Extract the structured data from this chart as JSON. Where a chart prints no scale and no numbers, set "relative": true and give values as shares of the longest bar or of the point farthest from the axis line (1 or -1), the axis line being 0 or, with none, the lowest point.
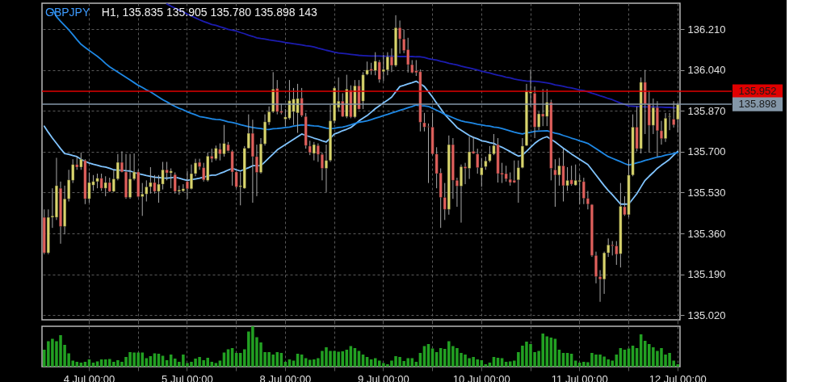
{
  "chart_data": [
    {
      "type": "candlestick",
      "title": "GBPJPY",
      "subtitle": "H1, 135.835 135.905 135.780 135.898 143",
      "categories": [
        null,
        null,
        null,
        null,
        null,
        null,
        null,
        null,
        null,
        null,
        null,
        "4 Jul 00:00",
        null,
        null,
        null,
        null,
        null,
        null,
        null,
        null,
        null,
        null,
        null,
        null,
        null,
        null,
        null,
        null,
        null,
        null,
        null,
        null,
        null,
        null,
        null,
        "5 Jul 00:00",
        null,
        null,
        null,
        null,
        null,
        null,
        null,
        null,
        null,
        null,
        null,
        null,
        null,
        null,
        null,
        null,
        null,
        null,
        null,
        null,
        null,
        null,
        null,
        "8 Jul 00:00",
        null,
        null,
        null,
        null,
        null,
        null,
        null,
        null,
        null,
        null,
        null,
        null,
        null,
        null,
        null,
        null,
        null,
        null,
        null,
        null,
        null,
        null,
        null,
        "9 Jul 00:00",
        null,
        null,
        null,
        null,
        null,
        null,
        null,
        null,
        null,
        null,
        null,
        null,
        null,
        null,
        null,
        null,
        null,
        null,
        null,
        null,
        null,
        null,
        null,
        "10 Jul 00:00",
        null,
        null,
        null,
        null,
        null,
        null,
        null,
        null,
        null,
        null,
        null,
        null,
        null,
        null,
        null,
        null,
        null,
        null,
        null,
        null,
        null,
        null,
        null,
        "11 Jul 00:00",
        null,
        null,
        null,
        null,
        null,
        null,
        null,
        null,
        null,
        null,
        null,
        null,
        null,
        null,
        null,
        null,
        null,
        null,
        null,
        null,
        null,
        null,
        null,
        "12 Jul 00:00"
      ],
      "ohlc": [
        [
          135.427,
          135.46,
          135.273,
          135.279
        ],
        [
          135.279,
          135.46,
          135.273,
          135.427
        ],
        [
          135.427,
          135.548,
          135.383,
          135.433
        ],
        [
          135.427,
          135.675,
          135.416,
          135.559
        ],
        [
          135.548,
          135.576,
          135.317,
          135.389
        ],
        [
          135.389,
          135.559,
          135.356,
          135.504
        ],
        [
          135.504,
          135.625,
          135.493,
          135.583
        ],
        [
          135.581,
          135.669,
          135.57,
          135.647
        ],
        [
          135.647,
          135.68,
          135.625,
          135.636
        ],
        [
          135.636,
          135.697,
          135.625,
          135.669
        ],
        [
          135.664,
          135.669,
          135.482,
          135.504
        ],
        [
          135.504,
          135.614,
          135.488,
          135.572
        ],
        [
          135.561,
          135.603,
          135.537,
          135.576
        ],
        [
          135.576,
          135.609,
          135.548,
          135.59
        ],
        [
          135.59,
          135.609,
          135.537,
          135.548
        ],
        [
          135.548,
          135.598,
          135.515,
          135.572
        ],
        [
          135.572,
          135.592,
          135.532,
          135.535
        ],
        [
          135.535,
          135.625,
          135.532,
          135.587
        ],
        [
          135.587,
          135.691,
          135.581,
          135.656
        ],
        [
          135.656,
          135.702,
          135.614,
          135.616
        ],
        [
          135.616,
          135.691,
          135.504,
          135.51
        ],
        [
          135.51,
          135.691,
          135.504,
          135.587
        ],
        [
          135.587,
          135.693,
          135.581,
          135.616
        ],
        [
          135.616,
          135.625,
          135.51,
          135.513
        ],
        [
          135.513,
          135.57,
          135.433,
          135.524
        ],
        [
          135.524,
          135.581,
          135.493,
          135.554
        ],
        [
          135.554,
          135.636,
          135.526,
          135.572
        ],
        [
          135.572,
          135.603,
          135.526,
          135.535
        ],
        [
          135.535,
          135.603,
          135.488,
          135.565
        ],
        [
          135.565,
          135.658,
          135.543,
          135.625
        ],
        [
          135.625,
          135.658,
          135.581,
          135.612
        ],
        [
          135.612,
          135.631,
          135.548,
          135.62
        ],
        [
          135.605,
          135.614,
          135.526,
          135.535
        ],
        [
          135.535,
          135.559,
          135.521,
          135.541
        ],
        [
          135.537,
          135.565,
          135.532,
          135.546
        ],
        [
          135.576,
          135.62,
          135.504,
          135.546
        ],
        [
          135.546,
          135.647,
          135.543,
          135.609
        ],
        [
          135.609,
          135.671,
          135.598,
          135.654
        ],
        [
          135.656,
          135.671,
          135.625,
          135.638
        ],
        [
          135.634,
          135.654,
          135.576,
          135.583
        ],
        [
          135.581,
          135.697,
          135.576,
          135.682
        ],
        [
          135.682,
          135.713,
          135.656,
          135.671
        ],
        [
          135.671,
          135.726,
          135.664,
          135.715
        ],
        [
          135.711,
          135.735,
          135.664,
          135.691
        ],
        [
          135.691,
          135.812,
          135.68,
          135.735
        ],
        [
          135.73,
          135.741,
          135.702,
          135.704
        ],
        [
          135.702,
          135.708,
          135.559,
          135.616
        ],
        [
          135.616,
          135.62,
          135.548,
          135.554
        ],
        [
          135.554,
          135.614,
          135.477,
          135.559
        ],
        [
          135.548,
          135.724,
          135.546,
          135.715
        ],
        [
          135.715,
          135.856,
          135.713,
          135.777
        ],
        [
          135.777,
          135.834,
          135.488,
          135.68
        ],
        [
          135.68,
          135.73,
          135.515,
          135.614
        ],
        [
          135.614,
          135.757,
          135.609,
          135.733
        ],
        [
          135.733,
          135.856,
          135.726,
          135.825
        ],
        [
          135.823,
          135.889,
          135.812,
          135.867
        ],
        [
          135.867,
          136.032,
          135.862,
          135.961
        ],
        [
          135.964,
          135.999,
          135.856,
          135.867
        ],
        [
          135.869,
          135.9,
          135.856,
          135.863
        ],
        [
          135.836,
          135.878,
          135.807,
          135.845
        ],
        [
          135.84,
          135.999,
          135.834,
          135.913
        ],
        [
          135.867,
          135.966,
          135.812,
          135.92
        ],
        [
          135.862,
          135.983,
          135.779,
          135.922
        ],
        [
          135.924,
          135.966,
          135.845,
          135.851
        ],
        [
          135.847,
          135.862,
          135.713,
          135.726
        ],
        [
          135.724,
          135.746,
          135.686,
          135.697
        ],
        [
          135.693,
          135.741,
          135.664,
          135.73
        ],
        [
          135.726,
          135.735,
          135.658,
          135.689
        ],
        [
          135.689,
          135.697,
          135.581,
          135.631
        ],
        [
          135.631,
          135.73,
          135.532,
          135.664
        ],
        [
          135.664,
          135.895,
          135.658,
          135.829
        ],
        [
          135.829,
          135.972,
          135.818,
          135.966
        ],
        [
          135.884,
          136.01,
          135.867,
          135.911
        ],
        [
          135.911,
          135.944,
          135.845,
          135.847
        ],
        [
          135.847,
          136.021,
          135.84,
          135.961
        ],
        [
          135.957,
          135.977,
          135.84,
          135.845
        ],
        [
          135.845,
          135.999,
          135.84,
          135.975
        ],
        [
          135.975,
          135.999,
          135.876,
          135.878
        ],
        [
          135.911,
          136.032,
          135.878,
          136.021
        ],
        [
          136.023,
          136.076,
          136.019,
          136.041
        ],
        [
          136.045,
          136.071,
          136.021,
          136.038
        ],
        [
          136.038,
          136.115,
          136.019,
          136.078
        ],
        [
          136.074,
          136.082,
          135.988,
          136.001
        ],
        [
          136.034,
          136.104,
          135.994,
          136.043
        ],
        [
          136.041,
          136.115,
          136.019,
          136.096
        ],
        [
          136.096,
          136.131,
          136.032,
          136.06
        ],
        [
          136.06,
          136.269,
          136.054,
          136.217
        ],
        [
          136.217,
          136.247,
          136.109,
          136.17
        ],
        [
          136.17,
          136.208,
          136.111,
          136.122
        ],
        [
          136.126,
          136.175,
          136.03,
          136.063
        ],
        [
          136.063,
          136.082,
          136.027,
          136.03
        ],
        [
          136.038,
          136.082,
          136.016,
          136.03
        ],
        [
          136.034,
          136.043,
          135.785,
          135.823
        ],
        [
          135.821,
          135.862,
          135.785,
          135.803
        ],
        [
          135.805,
          135.818,
          135.57,
          135.803
        ],
        [
          135.803,
          135.862,
          135.686,
          135.691
        ],
        [
          135.691,
          135.719,
          135.548,
          135.609
        ],
        [
          135.612,
          135.631,
          135.383,
          135.51
        ],
        [
          135.51,
          135.57,
          135.416,
          135.46
        ],
        [
          135.46,
          135.768,
          135.438,
          135.73
        ],
        [
          135.73,
          135.757,
          135.504,
          135.581
        ],
        [
          135.581,
          135.592,
          135.471,
          135.557
        ],
        [
          135.557,
          135.647,
          135.405,
          135.638
        ],
        [
          135.638,
          135.654,
          135.565,
          135.631
        ],
        [
          135.631,
          135.763,
          135.587,
          135.7
        ],
        [
          135.702,
          135.763,
          135.691,
          135.693
        ],
        [
          135.691,
          135.713,
          135.609,
          135.634
        ],
        [
          135.603,
          135.675,
          135.554,
          135.634
        ],
        [
          135.638,
          135.68,
          135.625,
          135.662
        ],
        [
          135.662,
          135.724,
          135.656,
          135.691
        ],
        [
          135.691,
          135.774,
          135.686,
          135.726
        ],
        [
          135.73,
          135.757,
          135.572,
          135.609
        ],
        [
          135.612,
          135.654,
          135.57,
          135.605
        ],
        [
          135.609,
          135.642,
          135.576,
          135.587
        ],
        [
          135.585,
          135.614,
          135.559,
          135.572
        ],
        [
          135.581,
          135.664,
          135.57,
          135.572
        ],
        [
          135.583,
          135.664,
          135.488,
          135.634
        ],
        [
          135.634,
          135.757,
          135.631,
          135.724
        ],
        [
          135.726,
          135.983,
          135.724,
          135.953
        ],
        [
          135.944,
          136.043,
          135.889,
          135.95
        ],
        [
          135.944,
          135.972,
          135.757,
          135.803
        ],
        [
          135.803,
          135.867,
          135.79,
          135.858
        ],
        [
          135.858,
          135.961,
          135.807,
          135.847
        ],
        [
          135.847,
          135.961,
          135.807,
          135.906
        ],
        [
          135.906,
          135.917,
          135.581,
          135.631
        ],
        [
          135.625,
          135.669,
          135.471,
          135.603
        ],
        [
          135.603,
          135.675,
          135.559,
          135.642
        ],
        [
          135.642,
          135.713,
          135.493,
          135.559
        ],
        [
          135.559,
          135.636,
          135.537,
          135.581
        ],
        [
          135.583,
          135.642,
          135.559,
          135.565
        ],
        [
          135.561,
          135.647,
          135.559,
          135.581
        ],
        [
          135.576,
          135.603,
          135.482,
          135.581
        ],
        [
          135.576,
          135.592,
          135.482,
          135.506
        ],
        [
          135.506,
          135.537,
          135.46,
          135.482
        ],
        [
          135.48,
          135.482,
          135.262,
          135.268
        ],
        [
          135.268,
          135.284,
          135.152,
          135.18
        ],
        [
          135.18,
          135.207,
          135.075,
          135.169
        ],
        [
          135.169,
          135.284,
          135.108,
          135.279
        ],
        [
          135.279,
          135.339,
          135.262,
          135.312
        ],
        [
          135.312,
          135.328,
          135.268,
          135.308
        ],
        [
          135.308,
          135.328,
          135.229,
          135.273
        ],
        [
          135.275,
          135.57,
          135.218,
          135.473
        ],
        [
          135.471,
          135.515,
          135.433,
          135.438
        ],
        [
          135.438,
          135.669,
          135.427,
          135.603
        ],
        [
          135.603,
          135.856,
          135.598,
          135.803
        ],
        [
          135.803,
          135.889,
          135.702,
          135.713
        ],
        [
          135.713,
          136.01,
          135.693,
          135.99
        ],
        [
          135.99,
          136.041,
          135.774,
          135.9
        ],
        [
          135.9,
          135.955,
          135.697,
          135.81
        ],
        [
          135.81,
          135.922,
          135.774,
          135.884
        ],
        [
          135.884,
          135.911,
          135.68,
          135.788
        ],
        [
          135.788,
          135.829,
          135.73,
          135.755
        ],
        [
          135.755,
          135.862,
          135.741,
          135.84
        ],
        [
          135.845,
          135.862,
          135.79,
          135.847
        ],
        [
          135.836,
          135.911,
          135.801,
          135.812
        ],
        [
          135.835,
          135.905,
          135.78,
          135.898
        ]
      ],
      "colors": [
        "#e0605c",
        "#d8d46c",
        "#d8d46c",
        "#d8d46c",
        "#e0605c",
        "#d8d46c",
        "#d8d46c",
        "#d8d46c",
        "#e0605c",
        "#d8d46c",
        "#e0605c",
        "#d8d46c",
        "#d8d46c",
        "#d8d46c",
        "#e0605c",
        "#d8d46c",
        "#e0605c",
        "#d8d46c",
        "#d8d46c",
        "#e0605c",
        "#e0605c",
        "#d8d46c",
        "#d8d46c",
        "#e0605c",
        "#d8d46c",
        "#d8d46c",
        "#d8d46c",
        "#e0605c",
        "#d8d46c",
        "#d8d46c",
        "#e0605c",
        "#d8d46c",
        "#e0605c",
        "#d8d46c",
        "#d8d46c",
        "#e0605c",
        "#d8d46c",
        "#d8d46c",
        "#e0605c",
        "#e0605c",
        "#d8d46c",
        "#e0605c",
        "#d8d46c",
        "#e0605c",
        "#d8d46c",
        "#e0605c",
        "#e0605c",
        "#e0605c",
        "#d8d46c",
        "#d8d46c",
        "#d8d46c",
        "#e0605c",
        "#e0605c",
        "#d8d46c",
        "#d8d46c",
        "#d8d46c",
        "#d8d46c",
        "#e0605c",
        "#e0605c",
        "#d8d46c",
        "#d8d46c",
        "#d8d46c",
        "#d8d46c",
        "#e0605c",
        "#e0605c",
        "#e0605c",
        "#d8d46c",
        "#e0605c",
        "#e0605c",
        "#d8d46c",
        "#d8d46c",
        "#d8d46c",
        "#d8d46c",
        "#e0605c",
        "#d8d46c",
        "#e0605c",
        "#d8d46c",
        "#e0605c",
        "#d8d46c",
        "#d8d46c",
        "#e0605c",
        "#d8d46c",
        "#e0605c",
        "#d8d46c",
        "#d8d46c",
        "#e0605c",
        "#d8d46c",
        "#e0605c",
        "#e0605c",
        "#e0605c",
        "#e0605c",
        "#e0605c",
        "#e0605c",
        "#e0605c",
        "#e0605c",
        "#e0605c",
        "#e0605c",
        "#e0605c",
        "#e0605c",
        "#d8d46c",
        "#e0605c",
        "#e0605c",
        "#d8d46c",
        "#e0605c",
        "#d8d46c",
        "#e0605c",
        "#e0605c",
        "#d8d46c",
        "#d8d46c",
        "#d8d46c",
        "#d8d46c",
        "#e0605c",
        "#e0605c",
        "#e0605c",
        "#e0605c",
        "#e0605c",
        "#d8d46c",
        "#d8d46c",
        "#d8d46c",
        "#d8d46c",
        "#e0605c",
        "#d8d46c",
        "#e0605c",
        "#d8d46c",
        "#e0605c",
        "#e0605c",
        "#d8d46c",
        "#e0605c",
        "#d8d46c",
        "#e0605c",
        "#d8d46c",
        "#d8d46c",
        "#e0605c",
        "#e0605c",
        "#e0605c",
        "#e0605c",
        "#e0605c",
        "#d8d46c",
        "#d8d46c",
        "#e0605c",
        "#e0605c",
        "#d8d46c",
        "#e0605c",
        "#d8d46c",
        "#d8d46c",
        "#e0605c",
        "#d8d46c",
        "#e0605c",
        "#e0605c",
        "#d8d46c",
        "#e0605c",
        "#e0605c",
        "#d8d46c",
        "#d8d46c",
        "#e0605c",
        "#d8d46c"
      ],
      "series": [
        {
          "type": "line",
          "color": "#80c4ff",
          "values": [
            135.807,
            135.781,
            135.757,
            135.735,
            135.713,
            135.693,
            135.689,
            135.684,
            135.68,
            135.669,
            135.66,
            135.653,
            135.648,
            135.644,
            135.639,
            135.636,
            135.631,
            135.625,
            135.624,
            135.623,
            135.621,
            135.62,
            135.614,
            135.609,
            135.605,
            135.601,
            135.598,
            135.594,
            135.593,
            135.591,
            135.59,
            135.592,
            135.594,
            135.59,
            135.585,
            135.581,
            135.584,
            135.587,
            135.59,
            135.594,
            135.599,
            135.603,
            135.603,
            135.61,
            135.616,
            135.624,
            135.631,
            135.625,
            135.62,
            135.627,
            135.634,
            135.642,
            135.642,
            135.642,
            135.658,
            135.675,
            135.691,
            135.708,
            135.719,
            135.73,
            135.741,
            135.752,
            135.763,
            135.774,
            135.768,
            135.763,
            135.757,
            135.752,
            135.746,
            135.741,
            135.757,
            135.774,
            135.78,
            135.788,
            135.794,
            135.801,
            135.814,
            135.829,
            135.84,
            135.851,
            135.865,
            135.88,
            135.892,
            135.904,
            135.915,
            135.928,
            135.95,
            135.972,
            135.977,
            135.983,
            135.988,
            135.994,
            135.983,
            135.972,
            135.95,
            135.928,
            135.903,
            135.88,
            135.856,
            135.837,
            135.82,
            135.801,
            135.79,
            135.779,
            135.768,
            135.76,
            135.754,
            135.746,
            135.743,
            135.738,
            135.735,
            135.726,
            135.719,
            135.71,
            135.701,
            135.691,
            135.682,
            135.686,
            135.702,
            135.719,
            135.735,
            135.748,
            135.757,
            135.763,
            135.752,
            135.741,
            135.728,
            135.715,
            135.703,
            135.691,
            135.68,
            135.669,
            135.658,
            135.647,
            135.625,
            135.603,
            135.581,
            135.559,
            135.539,
            135.521,
            135.502,
            135.482,
            135.482,
            135.482,
            135.504,
            135.526,
            135.554,
            135.581,
            135.598,
            135.614,
            135.631,
            135.644,
            135.656,
            135.669,
            135.686,
            135.702
          ]
        },
        {
          "type": "line",
          "color": "#1e88e5",
          "values": [
            null,
            null,
            136.294,
            136.263,
            136.244,
            136.226,
            136.208,
            136.188,
            136.167,
            136.148,
            136.135,
            136.122,
            136.11,
            136.098,
            136.084,
            136.068,
            136.054,
            136.043,
            136.032,
            136.021,
            136.01,
            135.999,
            135.988,
            135.977,
            135.968,
            135.958,
            135.95,
            135.939,
            135.928,
            135.917,
            135.908,
            135.898,
            135.889,
            135.881,
            135.875,
            135.867,
            135.86,
            135.854,
            135.847,
            135.844,
            135.841,
            135.837,
            135.835,
            135.834,
            135.83,
            135.825,
            135.822,
            135.818,
            135.813,
            135.809,
            135.805,
            135.801,
            135.799,
            135.797,
            135.794,
            135.793,
            135.796,
            135.797,
            135.799,
            135.801,
            135.803,
            135.807,
            135.81,
            135.812,
            135.811,
            135.81,
            135.808,
            135.807,
            135.803,
            135.799,
            135.796,
            135.798,
            135.801,
            135.803,
            135.807,
            135.812,
            135.818,
            135.823,
            135.826,
            135.829,
            135.834,
            135.84,
            135.845,
            135.851,
            135.856,
            135.862,
            135.867,
            135.873,
            135.878,
            135.884,
            135.889,
            135.895,
            135.892,
            135.891,
            135.889,
            135.881,
            135.873,
            135.865,
            135.856,
            135.849,
            135.842,
            135.835,
            135.829,
            135.825,
            135.822,
            135.819,
            135.815,
            135.812,
            135.809,
            135.807,
            135.803,
            135.801,
            135.797,
            135.792,
            135.787,
            135.782,
            135.778,
            135.774,
            135.779,
            135.781,
            135.785,
            135.786,
            135.787,
            135.788,
            135.783,
            135.778,
            135.774,
            135.768,
            135.763,
            135.757,
            135.752,
            135.746,
            135.741,
            135.735,
            135.724,
            135.713,
            135.702,
            135.691,
            135.68,
            135.673,
            135.666,
            135.659,
            135.651,
            135.645,
            135.649,
            135.654,
            135.658,
            135.664,
            135.668,
            135.673,
            135.678,
            135.681,
            135.686,
            135.689,
            135.693,
            135.697
          ]
        },
        {
          "type": "line",
          "color": "#1c1cb0",
          "values": [
            null,
            null,
            null,
            null,
            null,
            null,
            null,
            null,
            null,
            null,
            null,
            null,
            null,
            null,
            null,
            null,
            null,
            null,
            null,
            null,
            null,
            null,
            null,
            null,
            null,
            null,
            null,
            null,
            null,
            null,
            136.316,
            136.307,
            136.299,
            136.291,
            136.283,
            136.274,
            136.266,
            136.258,
            136.25,
            136.243,
            136.237,
            136.23,
            136.227,
            136.221,
            136.216,
            136.21,
            136.207,
            136.203,
            136.197,
            136.192,
            136.186,
            136.181,
            136.175,
            136.172,
            136.17,
            136.166,
            136.164,
            136.161,
            136.159,
            136.155,
            136.153,
            136.15,
            136.148,
            136.145,
            136.142,
            136.14,
            136.137,
            136.132,
            136.128,
            136.123,
            136.119,
            136.115,
            136.112,
            136.11,
            136.108,
            136.106,
            136.104,
            136.102,
            136.101,
            136.1,
            136.099,
            136.099,
            136.099,
            136.098,
            136.098,
            136.098,
            136.098,
            136.097,
            136.097,
            136.097,
            136.097,
            136.096,
            136.096,
            136.093,
            136.088,
            136.085,
            136.082,
            136.077,
            136.074,
            136.069,
            136.065,
            136.062,
            136.057,
            136.053,
            136.049,
            136.045,
            136.041,
            136.036,
            136.032,
            136.028,
            136.023,
            136.019,
            136.016,
            136.011,
            136.008,
            136.003,
            136.0,
            135.997,
            135.995,
            135.994,
            135.994,
            135.992,
            135.99,
            135.987,
            135.984,
            135.979,
            135.976,
            135.973,
            135.969,
            135.966,
            135.962,
            135.958,
            135.955,
            135.95,
            135.944,
            135.939,
            135.933,
            135.928,
            135.922,
            135.917,
            135.91,
            135.903,
            135.898,
            135.891,
            135.89,
            135.889,
            135.888,
            135.887,
            135.887,
            135.887,
            135.886,
            135.886,
            135.885,
            135.885,
            135.884,
            135.884
          ]
        }
      ],
      "ylim": [
        135.0,
        136.319
      ],
      "yticks": [
        {
          "value": 135.02,
          "label": "135.020"
        },
        {
          "value": 135.19,
          "label": "135.190"
        },
        {
          "value": 135.36,
          "label": "135.360"
        },
        {
          "value": 135.53,
          "label": "135.530"
        },
        {
          "value": 135.7,
          "label": "135.700"
        },
        {
          "value": 135.87,
          "label": "135.870"
        },
        {
          "value": 136.04,
          "label": "136.040"
        },
        {
          "value": 136.21,
          "label": "136.210"
        }
      ],
      "grid": true,
      "ref_lines": [
        {
          "axis": "y",
          "value": 135.952,
          "label": "135.952",
          "color": "#e00000"
        },
        {
          "axis": "y",
          "value": 135.898,
          "label": "135.898",
          "color": "#8497a8"
        }
      ]
    },
    {
      "type": "bar",
      "relative": true,
      "color": "#22a022",
      "categories": [
        null,
        null,
        null,
        null,
        null,
        null,
        null,
        null,
        null,
        null,
        null,
        null,
        null,
        null,
        null,
        null,
        null,
        null,
        null,
        null,
        null,
        null,
        null,
        null,
        null,
        null,
        null,
        null,
        null,
        null,
        null,
        null,
        null,
        null,
        null,
        null,
        null,
        null,
        null,
        null,
        null,
        null,
        null,
        null,
        null,
        null,
        null,
        null,
        null,
        null,
        null,
        null,
        null,
        null,
        null,
        null,
        null,
        null,
        null,
        null,
        null,
        null,
        null,
        null,
        null,
        null,
        null,
        null,
        null,
        null,
        null,
        null,
        null,
        null,
        null,
        null,
        null,
        null,
        null,
        null,
        null,
        null,
        null,
        null,
        null,
        null,
        null,
        null,
        null,
        null,
        null,
        null,
        null,
        null,
        null,
        null,
        null,
        null,
        null,
        null,
        null,
        null,
        null,
        null,
        null,
        null,
        null,
        null,
        null,
        null,
        null,
        null,
        null,
        null,
        null,
        null,
        null,
        null,
        null,
        null,
        null,
        null,
        null,
        null,
        null,
        null,
        null,
        null,
        null,
        null,
        null,
        null,
        null,
        null,
        null,
        null,
        null,
        null,
        null,
        null,
        null,
        null,
        null,
        null,
        null,
        null,
        null,
        null,
        null,
        null,
        null,
        null,
        null,
        null,
        null,
        null
      ],
      "values": [
        0.42,
        0.63,
        0.69,
        0.63,
        0.78,
        0.54,
        0.33,
        0.15,
        0.12,
        0.1,
        0.12,
        0.18,
        0.1,
        0.13,
        0.18,
        0.18,
        0.19,
        0.12,
        0.16,
        0.12,
        0.24,
        0.36,
        0.35,
        0.35,
        0.35,
        0.21,
        0.26,
        0.33,
        0.32,
        0.27,
        0.16,
        0.3,
        0.2,
        0.12,
        0.3,
        0.09,
        0.12,
        0.2,
        0.24,
        0.16,
        0.22,
        0.12,
        0.09,
        0.15,
        0.35,
        0.43,
        0.46,
        0.34,
        0.34,
        0.43,
        0.87,
        1,
        0.73,
        0.6,
        0.36,
        0.36,
        0.3,
        0.36,
        0.34,
        0.12,
        0.18,
        0.15,
        0.32,
        0.3,
        0.21,
        0.17,
        0.18,
        0.21,
        0.39,
        0.48,
        0.39,
        0.39,
        0.37,
        0.38,
        0.42,
        0.51,
        0.46,
        0.39,
        0.3,
        0.24,
        0.18,
        0.21,
        0.15,
        0.09,
        0.06,
        0.15,
        0.26,
        0.24,
        0.14,
        0.21,
        0.21,
        0.12,
        0.34,
        0.51,
        0.56,
        0.45,
        0.36,
        0.46,
        0.44,
        0.63,
        0.51,
        0.46,
        0.34,
        0.3,
        0.21,
        0.24,
        0.18,
        0.16,
        0.06,
        0.1,
        0.24,
        0.22,
        0.21,
        0.12,
        0.13,
        0.15,
        0.36,
        0.52,
        0.62,
        0.56,
        0.36,
        0.39,
        0.82,
        0.75,
        0.72,
        0.69,
        0.42,
        0.34,
        0.34,
        0.32,
        0.15,
        0.1,
        0.12,
        0.11,
        0.34,
        0.3,
        0.3,
        0.25,
        0.18,
        0.15,
        0.3,
        0.46,
        0.42,
        0.45,
        0.52,
        0.46,
        0.8,
        0.64,
        0.56,
        0.48,
        0.39,
        0.46,
        0.3,
        0.34,
        0.15,
        0.06
      ]
    }
  ]
}
